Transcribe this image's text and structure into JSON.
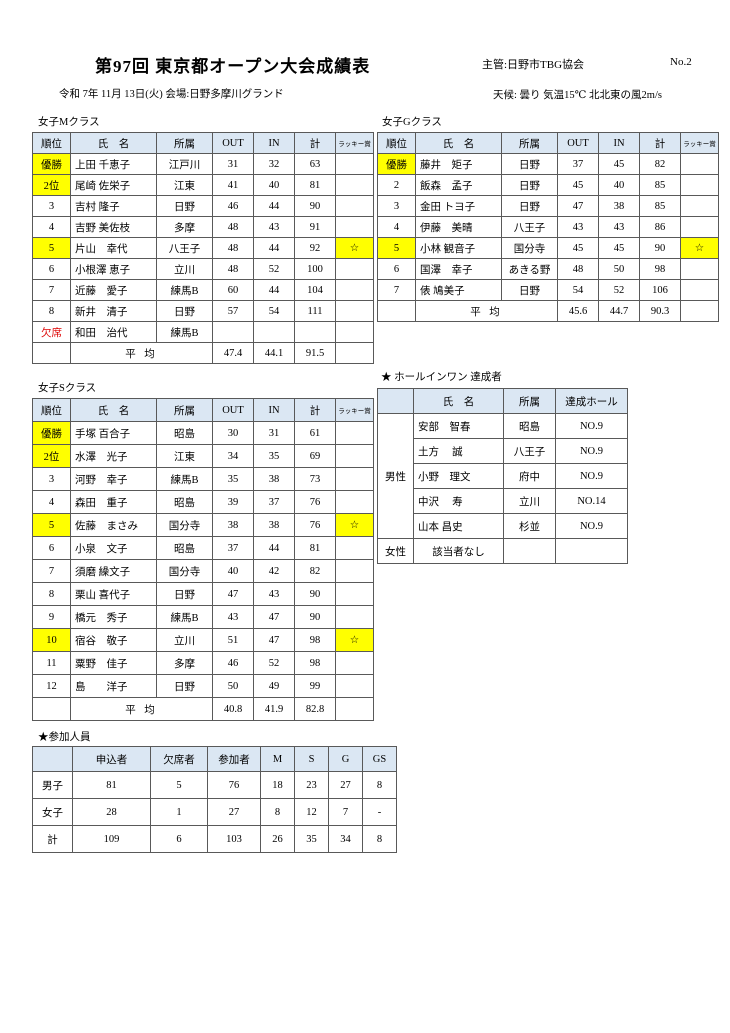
{
  "header": {
    "title": "第97回 東京都オープン大会成績表",
    "organizer": "主管:日野市TBG協会",
    "page_no": "No.2",
    "date_venue": "令和 7年 11月 13日(火)  会場:日野多摩川グランド",
    "weather": "天候: 曇り 気温15℃ 北北東の風2m/s"
  },
  "colors": {
    "header_bg": "#dbe7f3",
    "highlight": "#ffff00",
    "absent_red": "#dd0000"
  },
  "results_headers": [
    "順位",
    "氏　名",
    "所属",
    "OUT",
    "IN",
    "計",
    "ラッキー賞"
  ],
  "avg_label": "平 均",
  "star": "☆",
  "m_class": {
    "label": "女子Mクラス",
    "rows": [
      {
        "rank": "優勝",
        "hl": true,
        "name": "上田 千恵子",
        "club": "江戸川",
        "out": "31",
        "in": "32",
        "total": "63",
        "lucky": "",
        "lucky_hl": false,
        "absent": false
      },
      {
        "rank": "2位",
        "hl": true,
        "name": "尾崎 佐栄子",
        "club": "江東",
        "out": "41",
        "in": "40",
        "total": "81",
        "lucky": "",
        "lucky_hl": false,
        "absent": false
      },
      {
        "rank": "3",
        "hl": false,
        "name": "吉村 隆子",
        "club": "日野",
        "out": "46",
        "in": "44",
        "total": "90",
        "lucky": "",
        "lucky_hl": false,
        "absent": false
      },
      {
        "rank": "4",
        "hl": false,
        "name": "吉野 美佐枝",
        "club": "多摩",
        "out": "48",
        "in": "43",
        "total": "91",
        "lucky": "",
        "lucky_hl": false,
        "absent": false
      },
      {
        "rank": "5",
        "hl": true,
        "name": "片山　幸代",
        "club": "八王子",
        "out": "48",
        "in": "44",
        "total": "92",
        "lucky": "☆",
        "lucky_hl": true,
        "absent": false
      },
      {
        "rank": "6",
        "hl": false,
        "name": "小根澤 恵子",
        "club": "立川",
        "out": "48",
        "in": "52",
        "total": "100",
        "lucky": "",
        "lucky_hl": false,
        "absent": false
      },
      {
        "rank": "7",
        "hl": false,
        "name": "近藤　愛子",
        "club": "練馬B",
        "out": "60",
        "in": "44",
        "total": "104",
        "lucky": "",
        "lucky_hl": false,
        "absent": false
      },
      {
        "rank": "8",
        "hl": false,
        "name": "新井　清子",
        "club": "日野",
        "out": "57",
        "in": "54",
        "total": "111",
        "lucky": "",
        "lucky_hl": false,
        "absent": false
      },
      {
        "rank": "欠席",
        "hl": false,
        "name": "和田　治代",
        "club": "練馬B",
        "out": "",
        "in": "",
        "total": "",
        "lucky": "",
        "lucky_hl": false,
        "absent": true
      }
    ],
    "average": {
      "out": "47.4",
      "in": "44.1",
      "total": "91.5"
    }
  },
  "g_class": {
    "label": "女子Gクラス",
    "rows": [
      {
        "rank": "優勝",
        "hl": true,
        "name": "藤井　矩子",
        "club": "日野",
        "out": "37",
        "in": "45",
        "total": "82",
        "lucky": "",
        "lucky_hl": false,
        "absent": false
      },
      {
        "rank": "2",
        "hl": false,
        "name": "飯森　孟子",
        "club": "日野",
        "out": "45",
        "in": "40",
        "total": "85",
        "lucky": "",
        "lucky_hl": false,
        "absent": false
      },
      {
        "rank": "3",
        "hl": false,
        "name": "金田 トヨ子",
        "club": "日野",
        "out": "47",
        "in": "38",
        "total": "85",
        "lucky": "",
        "lucky_hl": false,
        "absent": false
      },
      {
        "rank": "4",
        "hl": false,
        "name": "伊藤　美晴",
        "club": "八王子",
        "out": "43",
        "in": "43",
        "total": "86",
        "lucky": "",
        "lucky_hl": false,
        "absent": false
      },
      {
        "rank": "5",
        "hl": true,
        "name": "小林 観音子",
        "club": "国分寺",
        "out": "45",
        "in": "45",
        "total": "90",
        "lucky": "☆",
        "lucky_hl": true,
        "absent": false
      },
      {
        "rank": "6",
        "hl": false,
        "name": "国澤　幸子",
        "club": "あきる野",
        "out": "48",
        "in": "50",
        "total": "98",
        "lucky": "",
        "lucky_hl": false,
        "absent": false
      },
      {
        "rank": "7",
        "hl": false,
        "name": "俵 鳩美子",
        "club": "日野",
        "out": "54",
        "in": "52",
        "total": "106",
        "lucky": "",
        "lucky_hl": false,
        "absent": false
      }
    ],
    "average": {
      "out": "45.6",
      "in": "44.7",
      "total": "90.3"
    }
  },
  "s_class": {
    "label": "女子Sクラス",
    "rows": [
      {
        "rank": "優勝",
        "hl": true,
        "name": "手塚 百合子",
        "club": "昭島",
        "out": "30",
        "in": "31",
        "total": "61",
        "lucky": "",
        "lucky_hl": false,
        "absent": false
      },
      {
        "rank": "2位",
        "hl": true,
        "name": "水澤　光子",
        "club": "江東",
        "out": "34",
        "in": "35",
        "total": "69",
        "lucky": "",
        "lucky_hl": false,
        "absent": false
      },
      {
        "rank": "3",
        "hl": false,
        "name": "河野　幸子",
        "club": "練馬B",
        "out": "35",
        "in": "38",
        "total": "73",
        "lucky": "",
        "lucky_hl": false,
        "absent": false
      },
      {
        "rank": "4",
        "hl": false,
        "name": "森田　重子",
        "club": "昭島",
        "out": "39",
        "in": "37",
        "total": "76",
        "lucky": "",
        "lucky_hl": false,
        "absent": false
      },
      {
        "rank": "5",
        "hl": true,
        "name": "佐藤　まさみ",
        "club": "国分寺",
        "out": "38",
        "in": "38",
        "total": "76",
        "lucky": "☆",
        "lucky_hl": true,
        "absent": false
      },
      {
        "rank": "6",
        "hl": false,
        "name": "小泉　文子",
        "club": "昭島",
        "out": "37",
        "in": "44",
        "total": "81",
        "lucky": "",
        "lucky_hl": false,
        "absent": false
      },
      {
        "rank": "7",
        "hl": false,
        "name": "須磨 繰文子",
        "club": "国分寺",
        "out": "40",
        "in": "42",
        "total": "82",
        "lucky": "",
        "lucky_hl": false,
        "absent": false
      },
      {
        "rank": "8",
        "hl": false,
        "name": "栗山 喜代子",
        "club": "日野",
        "out": "47",
        "in": "43",
        "total": "90",
        "lucky": "",
        "lucky_hl": false,
        "absent": false
      },
      {
        "rank": "9",
        "hl": false,
        "name": "橋元　秀子",
        "club": "練馬B",
        "out": "43",
        "in": "47",
        "total": "90",
        "lucky": "",
        "lucky_hl": false,
        "absent": false
      },
      {
        "rank": "10",
        "hl": true,
        "name": "宿谷　敬子",
        "club": "立川",
        "out": "51",
        "in": "47",
        "total": "98",
        "lucky": "☆",
        "lucky_hl": true,
        "absent": false
      },
      {
        "rank": "11",
        "hl": false,
        "name": "粟野　佳子",
        "club": "多摩",
        "out": "46",
        "in": "52",
        "total": "98",
        "lucky": "",
        "lucky_hl": false,
        "absent": false
      },
      {
        "rank": "12",
        "hl": false,
        "name": "島　　洋子",
        "club": "日野",
        "out": "50",
        "in": "49",
        "total": "99",
        "lucky": "",
        "lucky_hl": false,
        "absent": false
      }
    ],
    "average": {
      "out": "40.8",
      "in": "41.9",
      "total": "82.8"
    }
  },
  "hole_in_one": {
    "label": "★ ホールインワン 達成者",
    "headers": [
      "",
      "氏　名",
      "所属",
      "達成ホール"
    ],
    "male_label": "男性",
    "female_label": "女性",
    "male_rows": [
      {
        "name": "安部　智春",
        "club": "昭島",
        "hole": "NO.9"
      },
      {
        "name": "土方　 誠",
        "club": "八王子",
        "hole": "NO.9"
      },
      {
        "name": "小野　理文",
        "club": "府中",
        "hole": "NO.9"
      },
      {
        "name": "中沢　 寿",
        "club": "立川",
        "hole": "NO.14"
      },
      {
        "name": "山本 昌史",
        "club": "杉並",
        "hole": "NO.9"
      }
    ],
    "female_note": "該当者なし"
  },
  "participants": {
    "label": "★参加人員",
    "headers": [
      "",
      "申込者",
      "欠席者",
      "参加者",
      "M",
      "S",
      "G",
      "GS"
    ],
    "rows": [
      {
        "label": "男子",
        "values": [
          "81",
          "5",
          "76",
          "18",
          "23",
          "27",
          "8"
        ]
      },
      {
        "label": "女子",
        "values": [
          "28",
          "1",
          "27",
          "8",
          "12",
          "7",
          "-"
        ]
      },
      {
        "label": "計",
        "values": [
          "109",
          "6",
          "103",
          "26",
          "35",
          "34",
          "8"
        ]
      }
    ]
  }
}
